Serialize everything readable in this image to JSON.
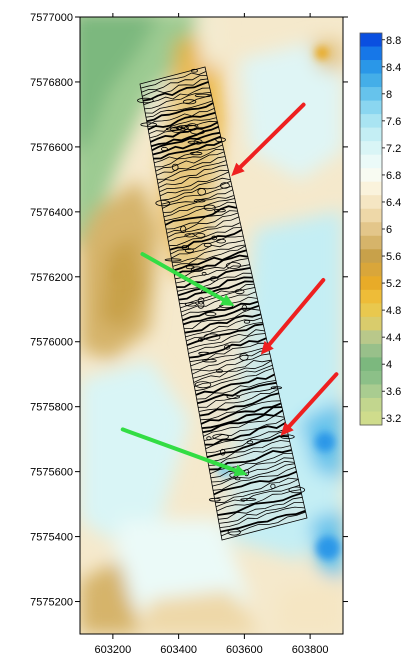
{
  "map": {
    "x_axis": {
      "range": [
        603100,
        603900
      ],
      "ticks": [
        {
          "value": 603200,
          "label": "603200"
        },
        {
          "value": 603400,
          "label": "603400"
        },
        {
          "value": 603600,
          "label": "603600"
        },
        {
          "value": 603800,
          "label": "603800"
        }
      ]
    },
    "y_axis": {
      "range": [
        7575100,
        7577000
      ],
      "ticks": [
        {
          "value": 7577000,
          "label": "7577000"
        },
        {
          "value": 7576800,
          "label": "7576800"
        },
        {
          "value": 7576600,
          "label": "7576600"
        },
        {
          "value": 7576400,
          "label": "7576400"
        },
        {
          "value": 7576200,
          "label": "7576200"
        },
        {
          "value": 7576000,
          "label": "7576000"
        },
        {
          "value": 7575800,
          "label": "7575800"
        },
        {
          "value": 7575600,
          "label": "7575600"
        },
        {
          "value": 7575400,
          "label": "7575400"
        },
        {
          "value": 7575200,
          "label": "7575200"
        }
      ]
    },
    "colorbar": {
      "levels": [
        {
          "value": 8.8,
          "label": "8.8",
          "color": "#0a4fe0"
        },
        {
          "value": 8.6,
          "label": "",
          "color": "#1677e8"
        },
        {
          "value": 8.4,
          "label": "8.4",
          "color": "#2a97e8"
        },
        {
          "value": 8.2,
          "label": "",
          "color": "#44aee8"
        },
        {
          "value": 8.0,
          "label": "8",
          "color": "#66c3ec"
        },
        {
          "value": 7.8,
          "label": "",
          "color": "#8ad6f0"
        },
        {
          "value": 7.6,
          "label": "7.6",
          "color": "#a9e4f2"
        },
        {
          "value": 7.4,
          "label": "",
          "color": "#c4eef4"
        },
        {
          "value": 7.2,
          "label": "7.2",
          "color": "#d9f5f6"
        },
        {
          "value": 7.0,
          "label": "",
          "color": "#ebfaf8"
        },
        {
          "value": 6.8,
          "label": "6.8",
          "color": "#f8fbf2"
        },
        {
          "value": 6.6,
          "label": "",
          "color": "#faf3dc"
        },
        {
          "value": 6.4,
          "label": "6.4",
          "color": "#f5e6c3"
        },
        {
          "value": 6.2,
          "label": "",
          "color": "#eed8a8"
        },
        {
          "value": 6.0,
          "label": "6",
          "color": "#e3c68a"
        },
        {
          "value": 5.8,
          "label": "",
          "color": "#d6b46a"
        },
        {
          "value": 5.6,
          "label": "5.6",
          "color": "#c8a14a"
        },
        {
          "value": 5.4,
          "label": "",
          "color": "#d9a63a"
        },
        {
          "value": 5.2,
          "label": "5.2",
          "color": "#e8ab28"
        },
        {
          "value": 5.0,
          "label": "",
          "color": "#eebc38"
        },
        {
          "value": 4.8,
          "label": "4.8",
          "color": "#e9c84e"
        },
        {
          "value": 4.6,
          "label": "",
          "color": "#d9cc6c"
        },
        {
          "value": 4.4,
          "label": "4.4",
          "color": "#b9c88a"
        },
        {
          "value": 4.2,
          "label": "",
          "color": "#98c08a"
        },
        {
          "value": 4.0,
          "label": "4",
          "color": "#7cb87e"
        },
        {
          "value": 3.8,
          "label": "",
          "color": "#8cc088"
        },
        {
          "value": 3.6,
          "label": "3.6",
          "color": "#a9cc90"
        },
        {
          "value": 3.4,
          "label": "",
          "color": "#c2d68e"
        },
        {
          "value": 3.2,
          "label": "3.2",
          "color": "#cfdc8c"
        }
      ]
    },
    "arrows": [
      {
        "color": "#ee2020",
        "from": [
          603780,
          7576730
        ],
        "to": [
          603560,
          7576510
        ]
      },
      {
        "color": "#33dd44",
        "from": [
          603290,
          7576270
        ],
        "to": [
          603570,
          7576110
        ]
      },
      {
        "color": "#ee2020",
        "from": [
          603840,
          7576190
        ],
        "to": [
          603650,
          7575960
        ]
      },
      {
        "color": "#ee2020",
        "from": [
          603880,
          7575900
        ],
        "to": [
          603710,
          7575710
        ]
      },
      {
        "color": "#33dd44",
        "from": [
          603230,
          7575730
        ],
        "to": [
          603610,
          7575590
        ]
      }
    ]
  }
}
